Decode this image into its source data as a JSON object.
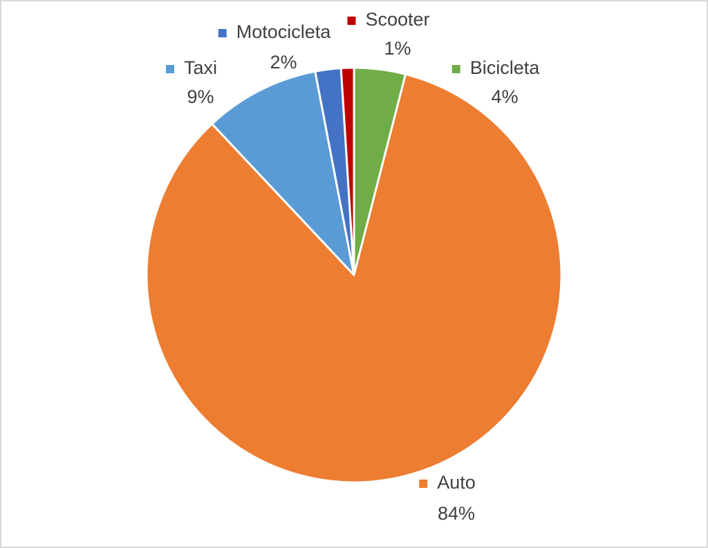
{
  "chart_data": {
    "type": "pie",
    "categories": [
      "Bicicleta",
      "Auto",
      "Taxi",
      "Motocicleta",
      "Scooter"
    ],
    "values": [
      4,
      84,
      9,
      2,
      1
    ],
    "value_labels": [
      "4%",
      "84%",
      "9%",
      "2%",
      "1%"
    ],
    "colors": [
      "#70ad47",
      "#ed7d31",
      "#5b9bd5",
      "#4472c4",
      "#c00000"
    ]
  }
}
